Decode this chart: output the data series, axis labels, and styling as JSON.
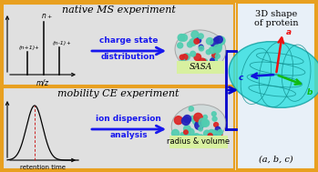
{
  "bg_color": "#ebebeb",
  "outer_border_color": "#e8a020",
  "panel_top_title": "native MS experiment",
  "panel_bot_title": "mobility CE experiment",
  "right_title_line1": "3D shape",
  "right_title_line2": "of protein",
  "arrow_color": "#1818ee",
  "arrow_label_top1": "charge state",
  "arrow_label_top2": "distribution",
  "arrow_label_bot1": "ion dispersion",
  "arrow_label_bot2": "analysis",
  "sasa_label": "SASA",
  "rv_label": "radius & volume",
  "abc_label": "(a, b, c)",
  "ellipsoid_face": "#30e0e0",
  "ellipsoid_edge": "#10a0a0",
  "ellipsoid_grid": "#109090",
  "axis_a_color": "#ee1010",
  "axis_b_color": "#10bb10",
  "axis_c_color": "#1010dd",
  "sasa_bg": "#d8f0a0",
  "rv_bg": "#d8f0a0",
  "panel_bg": "#e0e0e0",
  "right_bg": "#e8f0f8",
  "mz_label": "m/z",
  "rt_label": "retention time",
  "sphere_colors": [
    "#50d0b0",
    "#50d0b0",
    "#50d0b0",
    "#ee3030",
    "#3030ee",
    "#50d0b0",
    "#50d0b0",
    "#ee3030",
    "#3030ee"
  ],
  "connector_color": "#0000cc"
}
